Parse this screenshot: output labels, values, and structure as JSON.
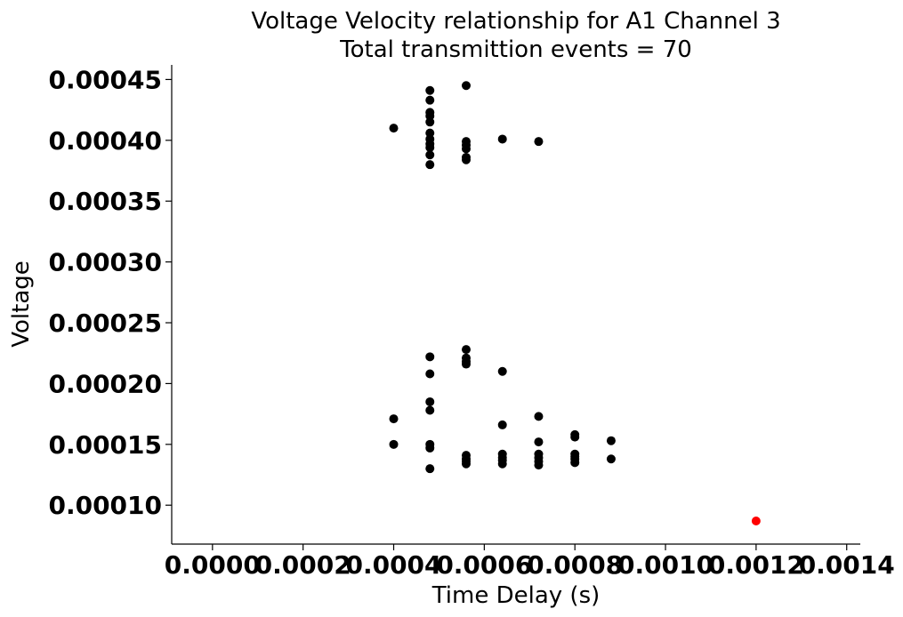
{
  "chart_data": {
    "type": "scatter",
    "title": "Voltage Velocity relationship for A1 Channel 3",
    "subtitle": "Total transmittion events = 70",
    "xlabel": "Time Delay (s)",
    "ylabel": "Voltage",
    "xlim": [
      -9e-05,
      0.00143
    ],
    "ylim": [
      6.8e-05,
      0.000462
    ],
    "x_ticks": [
      0.0,
      0.0002,
      0.0004,
      0.0006,
      0.0008,
      0.001,
      0.0012,
      0.0014
    ],
    "x_tick_labels": [
      "0.0000",
      "0.0002",
      "0.0004",
      "0.0006",
      "0.0008",
      "0.0010",
      "0.0012",
      "0.0014"
    ],
    "y_ticks": [
      0.0001,
      0.00015,
      0.0002,
      0.00025,
      0.0003,
      0.00035,
      0.0004,
      0.00045
    ],
    "y_tick_labels": [
      "0.00010",
      "0.00015",
      "0.00020",
      "0.00025",
      "0.00030",
      "0.00035",
      "0.00040",
      "0.00045"
    ],
    "grid": false,
    "series": [
      {
        "color": "#000000",
        "points": [
          [
            0.0004,
            0.00041
          ],
          [
            0.00048,
            0.000441
          ],
          [
            0.00048,
            0.000433
          ],
          [
            0.00048,
            0.000423
          ],
          [
            0.00048,
            0.00042
          ],
          [
            0.00048,
            0.000415
          ],
          [
            0.00048,
            0.000406
          ],
          [
            0.00048,
            0.000401
          ],
          [
            0.00048,
            0.000397
          ],
          [
            0.00048,
            0.000394
          ],
          [
            0.00048,
            0.000388
          ],
          [
            0.00048,
            0.00038
          ],
          [
            0.00056,
            0.000445
          ],
          [
            0.00056,
            0.000399
          ],
          [
            0.00056,
            0.000396
          ],
          [
            0.00056,
            0.000393
          ],
          [
            0.00056,
            0.000386
          ],
          [
            0.00056,
            0.000384
          ],
          [
            0.00064,
            0.000401
          ],
          [
            0.00072,
            0.000399
          ],
          [
            0.00048,
            0.000222
          ],
          [
            0.00048,
            0.000208
          ],
          [
            0.00048,
            0.000185
          ],
          [
            0.00048,
            0.000178
          ],
          [
            0.00048,
            0.00015
          ],
          [
            0.00048,
            0.000147
          ],
          [
            0.00048,
            0.00013
          ],
          [
            0.0004,
            0.000171
          ],
          [
            0.0004,
            0.00015
          ],
          [
            0.00056,
            0.000228
          ],
          [
            0.00056,
            0.000221
          ],
          [
            0.00056,
            0.000218
          ],
          [
            0.00056,
            0.000216
          ],
          [
            0.00056,
            0.000141
          ],
          [
            0.00056,
            0.000138
          ],
          [
            0.00056,
            0.000136
          ],
          [
            0.00056,
            0.000134
          ],
          [
            0.00064,
            0.00021
          ],
          [
            0.00064,
            0.000166
          ],
          [
            0.00064,
            0.000142
          ],
          [
            0.00064,
            0.000139
          ],
          [
            0.00064,
            0.000137
          ],
          [
            0.00064,
            0.000134
          ],
          [
            0.00072,
            0.000173
          ],
          [
            0.00072,
            0.000152
          ],
          [
            0.00072,
            0.000142
          ],
          [
            0.00072,
            0.000139
          ],
          [
            0.00072,
            0.000136
          ],
          [
            0.00072,
            0.000133
          ],
          [
            0.0008,
            0.000158
          ],
          [
            0.0008,
            0.000156
          ],
          [
            0.0008,
            0.000142
          ],
          [
            0.0008,
            0.00014
          ],
          [
            0.0008,
            0.000138
          ],
          [
            0.0008,
            0.000135
          ],
          [
            0.00088,
            0.000153
          ],
          [
            0.00088,
            0.000138
          ]
        ]
      },
      {
        "color": "#ff0000",
        "points": [
          [
            0.0012,
            8.7e-05
          ]
        ]
      }
    ]
  }
}
